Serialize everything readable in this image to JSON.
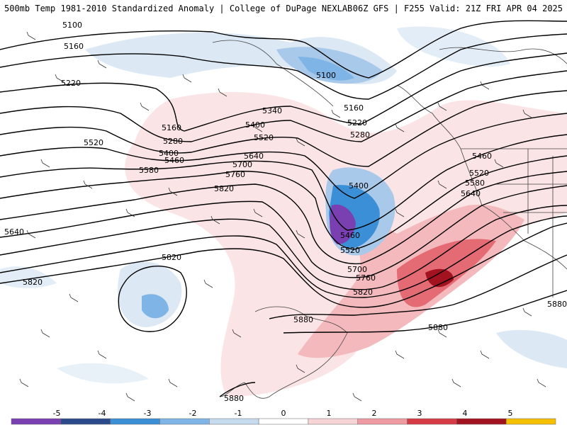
{
  "header": {
    "left_title": "500mb Temp 1981-2010 Standardized Anomaly | College of DuPage NEXLAB",
    "right_title": "06Z GFS | F255 Valid: 21Z FRI APR 04 2025"
  },
  "contours": [
    {
      "label": "5100"
    },
    {
      "label": "5160"
    },
    {
      "label": "5220"
    },
    {
      "label": "5280"
    },
    {
      "label": "5340"
    },
    {
      "label": "5400"
    },
    {
      "label": "5460"
    },
    {
      "label": "5520"
    },
    {
      "label": "5580"
    },
    {
      "label": "5640"
    },
    {
      "label": "5700"
    },
    {
      "label": "5760"
    },
    {
      "label": "5820"
    },
    {
      "label": "5880"
    }
  ],
  "colorbar": {
    "ticks": [
      "-5",
      "-4",
      "-3",
      "-2",
      "-1",
      "0",
      "1",
      "2",
      "3",
      "4",
      "5"
    ],
    "colors": [
      "#7a3fb0",
      "#2a4a8a",
      "#3b8fd6",
      "#7fb5e6",
      "#c7dbef",
      "#ffffff",
      "#f7d4d6",
      "#ef9aa0",
      "#d63a45",
      "#a3121f",
      "#f5c000"
    ]
  }
}
